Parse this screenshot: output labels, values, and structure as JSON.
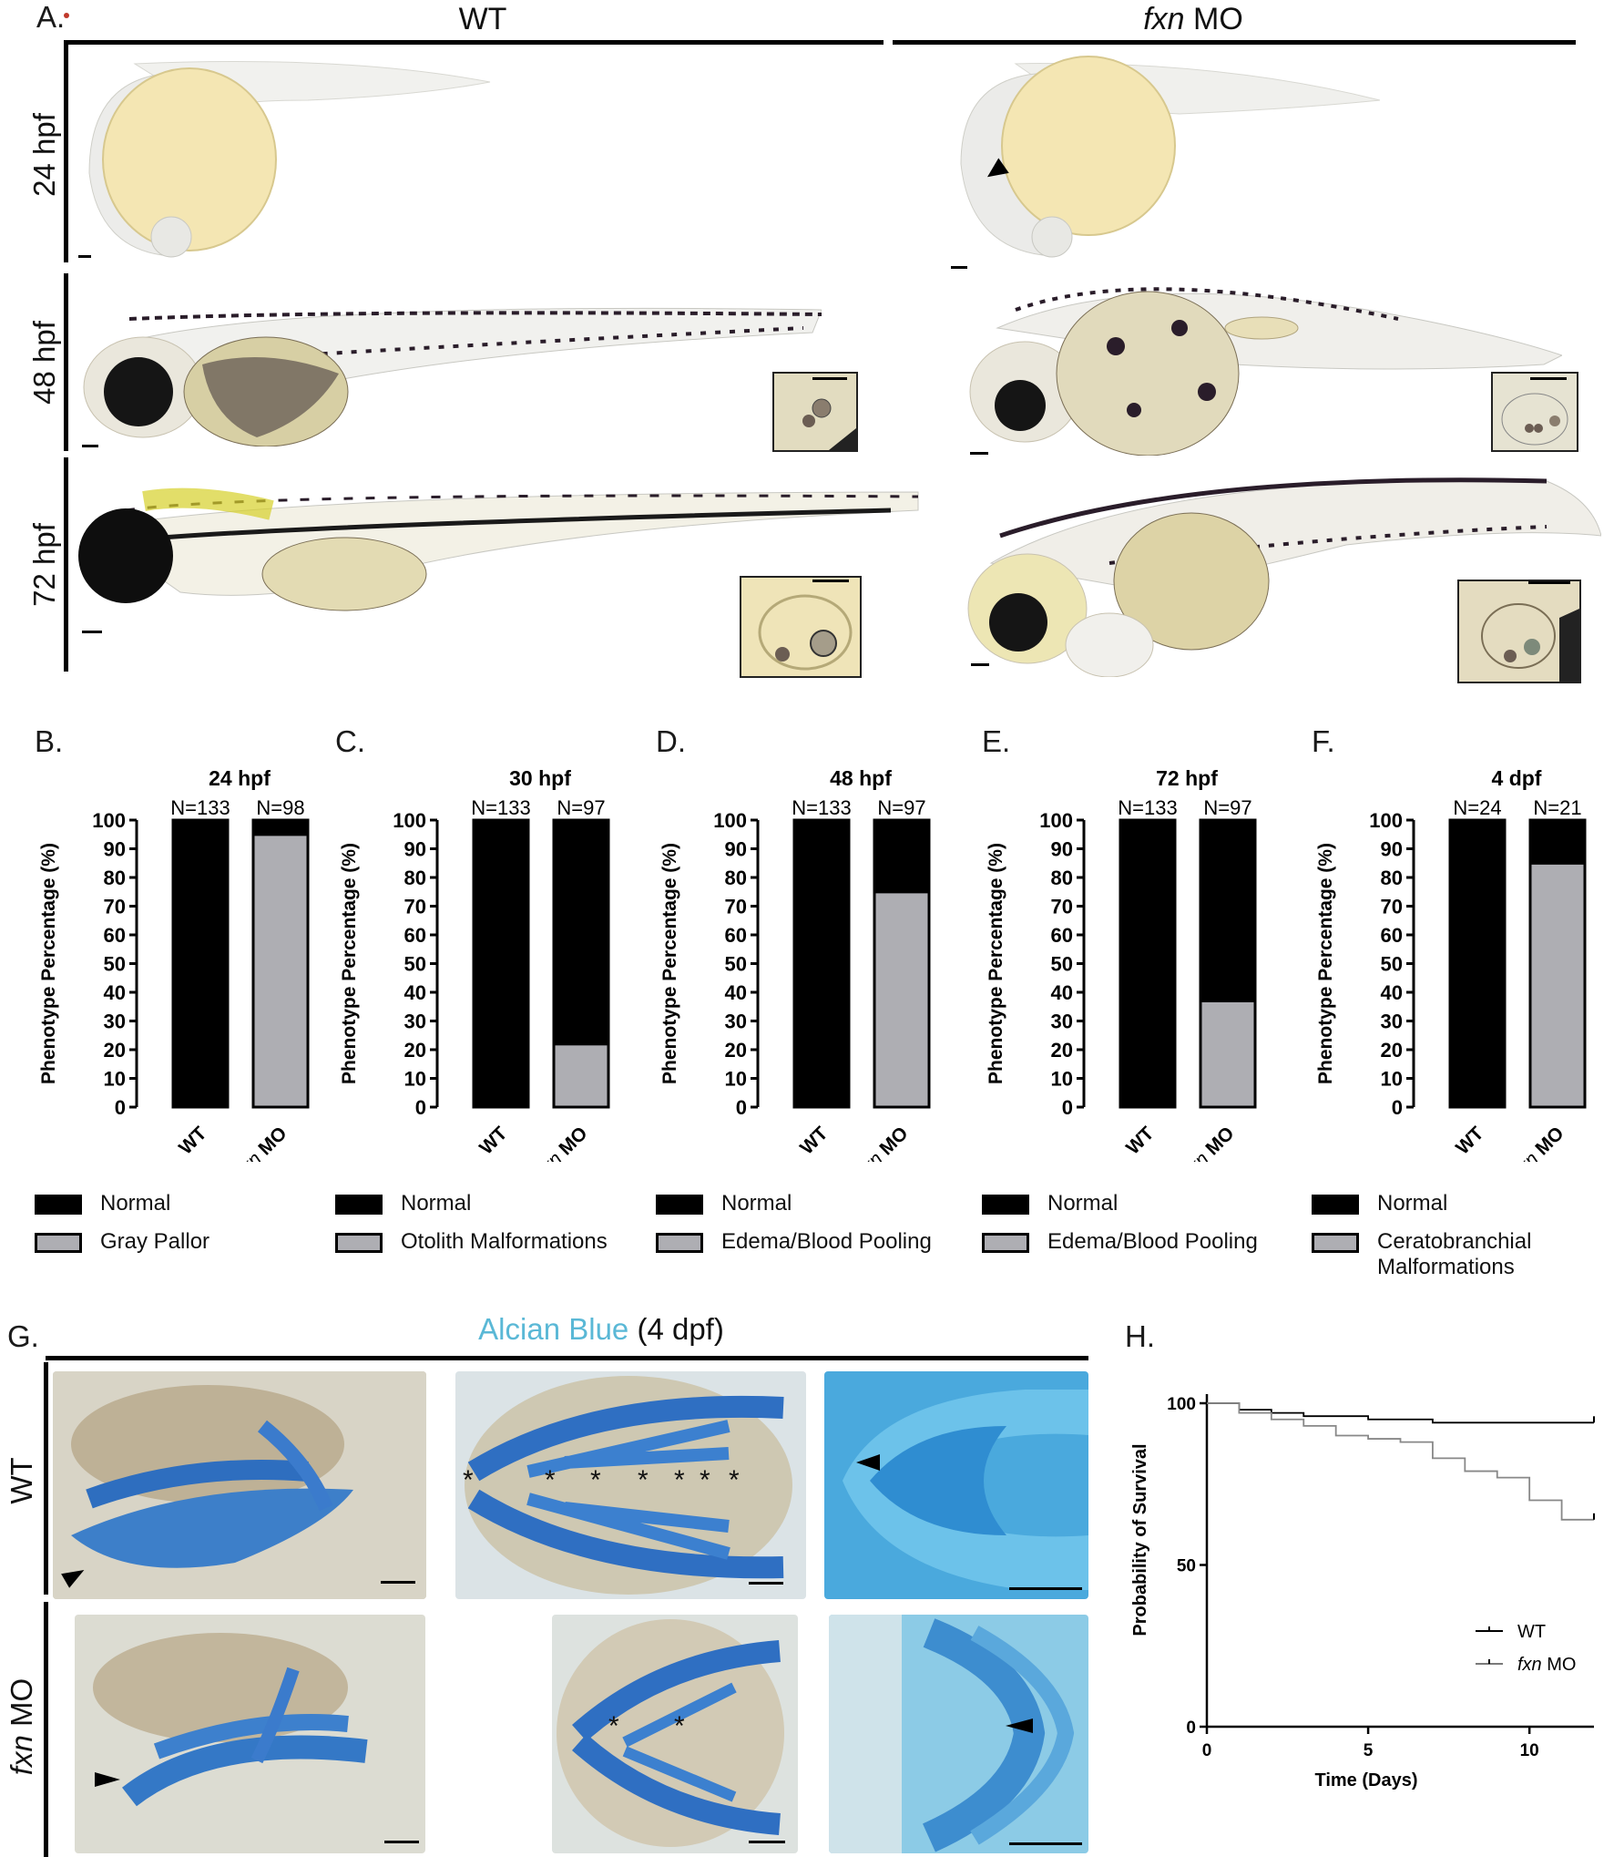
{
  "panel_a": {
    "letter": "A.",
    "col_wt": "WT",
    "col_mo_italic": "fxn",
    "col_mo_rest": " MO",
    "rows": [
      "24 hpf",
      "48 hpf",
      "72 hpf"
    ]
  },
  "bar_panels": [
    {
      "letter": "B.",
      "title": "24 hpf",
      "n_wt": "N=133",
      "n_mo": "N=98",
      "legend_normal": "Normal",
      "legend_other": "Gray Pallor"
    },
    {
      "letter": "C.",
      "title": "30 hpf",
      "n_wt": "N=133",
      "n_mo": "N=97",
      "legend_normal": "Normal",
      "legend_other": "Otolith Malformations"
    },
    {
      "letter": "D.",
      "title": "48 hpf",
      "n_wt": "N=133",
      "n_mo": "N=97",
      "legend_normal": "Normal",
      "legend_other": "Edema/Blood Pooling"
    },
    {
      "letter": "E.",
      "title": "72 hpf",
      "n_wt": "N=133",
      "n_mo": "N=97",
      "legend_normal": "Normal",
      "legend_other": "Edema/Blood Pooling"
    },
    {
      "letter": "F.",
      "title": "4 dpf",
      "n_wt": "N=24",
      "n_mo": "N=21",
      "legend_normal": "Normal",
      "legend_other": "Ceratobranchial Malformations"
    }
  ],
  "bar_common": {
    "ylabel": "Phenotype Percentage (%)",
    "yticks": [
      "0",
      "10",
      "20",
      "30",
      "40",
      "50",
      "60",
      "70",
      "80",
      "90",
      "100"
    ],
    "x_wt": "WT",
    "x_mo_italic": "fxn",
    "x_mo_rest": " MO"
  },
  "panel_g": {
    "letter": "G.",
    "title_colored": "Alcian Blue",
    "title_rest": " (4 dpf)",
    "row_wt": "WT",
    "row_mo_italic": "fxn",
    "row_mo_rest": " MO",
    "star": "*"
  },
  "panel_h": {
    "letter": "H.",
    "ylabel": "Probability of Survival",
    "xlabel": "Time (Days)",
    "yticks": [
      "0",
      "50",
      "100"
    ],
    "xticks": [
      "0",
      "5",
      "10"
    ],
    "legend_wt": "WT",
    "legend_mo_italic": "fxn",
    "legend_mo_rest": " MO"
  },
  "chart_data": [
    {
      "type": "bar",
      "title": "24 hpf",
      "categories": [
        "WT",
        "fxn MO"
      ],
      "ylabel": "Phenotype Percentage (%)",
      "ylim": [
        0,
        100
      ],
      "series": [
        {
          "name": "Gray Pallor",
          "values": [
            0,
            95
          ]
        },
        {
          "name": "Normal",
          "values": [
            100,
            5
          ]
        }
      ]
    },
    {
      "type": "bar",
      "title": "30 hpf",
      "categories": [
        "WT",
        "fxn MO"
      ],
      "ylabel": "Phenotype Percentage (%)",
      "ylim": [
        0,
        100
      ],
      "series": [
        {
          "name": "Otolith Malformations",
          "values": [
            0,
            22
          ]
        },
        {
          "name": "Normal",
          "values": [
            100,
            78
          ]
        }
      ]
    },
    {
      "type": "bar",
      "title": "48 hpf",
      "categories": [
        "WT",
        "fxn MO"
      ],
      "ylabel": "Phenotype Percentage (%)",
      "ylim": [
        0,
        100
      ],
      "series": [
        {
          "name": "Edema/Blood Pooling",
          "values": [
            0,
            75
          ]
        },
        {
          "name": "Normal",
          "values": [
            100,
            25
          ]
        }
      ]
    },
    {
      "type": "bar",
      "title": "72 hpf",
      "categories": [
        "WT",
        "fxn MO"
      ],
      "ylabel": "Phenotype Percentage (%)",
      "ylim": [
        0,
        100
      ],
      "series": [
        {
          "name": "Edema/Blood Pooling",
          "values": [
            0,
            37
          ]
        },
        {
          "name": "Normal",
          "values": [
            100,
            63
          ]
        }
      ]
    },
    {
      "type": "bar",
      "title": "4 dpf",
      "categories": [
        "WT",
        "fxn MO"
      ],
      "ylabel": "Phenotype Percentage (%)",
      "ylim": [
        0,
        100
      ],
      "series": [
        {
          "name": "Ceratobranchial Malformations",
          "values": [
            0,
            85
          ]
        },
        {
          "name": "Normal",
          "values": [
            100,
            15
          ]
        }
      ]
    },
    {
      "type": "line",
      "xlabel": "Time (Days)",
      "ylabel": "Probability of Survival",
      "xlim": [
        0,
        12
      ],
      "ylim": [
        0,
        100
      ],
      "series": [
        {
          "name": "WT",
          "x": [
            0,
            1,
            2,
            3,
            4,
            5,
            6,
            7,
            8,
            9,
            10,
            11,
            12
          ],
          "y": [
            100,
            98,
            97,
            96,
            96,
            95,
            95,
            94,
            94,
            94,
            94,
            94,
            94
          ]
        },
        {
          "name": "fxn MO",
          "x": [
            0,
            1,
            2,
            3,
            4,
            5,
            6,
            7,
            8,
            9,
            10,
            11,
            12
          ],
          "y": [
            100,
            97,
            95,
            93,
            90,
            89,
            88,
            83,
            79,
            77,
            70,
            64,
            64
          ]
        }
      ]
    }
  ],
  "colors": {
    "normal": "#000000",
    "other": "#aeaeb3",
    "alcian": "#5ab8d6"
  }
}
